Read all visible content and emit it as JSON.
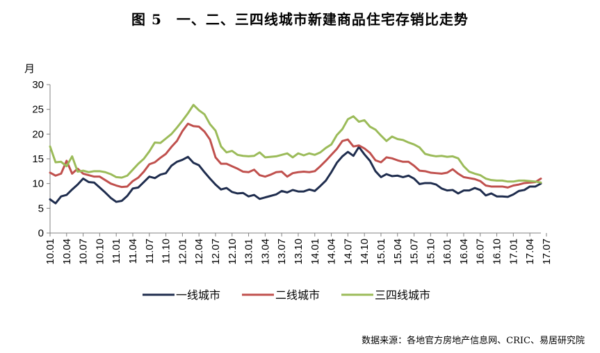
{
  "chart_data": {
    "type": "line",
    "title": "图 5　一、二、三四线城市新建商品住宅存销比走势",
    "ylabel": "月",
    "ylim": [
      0,
      30
    ],
    "yticks": [
      0,
      5,
      10,
      15,
      20,
      25,
      30
    ],
    "x_tick_labels": [
      "10.01",
      "10.04",
      "10.07",
      "10.10",
      "11.01",
      "11.04",
      "11.07",
      "11.10",
      "12.01",
      "12.04",
      "12.07",
      "12.10",
      "13.01",
      "13.04",
      "13.07",
      "13.10",
      "14.01",
      "14.04",
      "14.07",
      "14.10",
      "15.01",
      "15.04",
      "15.07",
      "15.10",
      "16.01",
      "16.04",
      "16.07",
      "16.10",
      "17.01",
      "17.04",
      "17.07"
    ],
    "grid": false,
    "legend": "bottom",
    "series": [
      {
        "name": "一线城市",
        "color": "#1f2d4e",
        "values": [
          6.8,
          6.0,
          7.4,
          7.7,
          8.8,
          9.8,
          11.0,
          10.3,
          10.2,
          9.2,
          8.2,
          7.1,
          6.3,
          6.5,
          7.5,
          9.0,
          9.2,
          10.3,
          11.4,
          11.1,
          11.8,
          12.1,
          13.6,
          14.4,
          14.8,
          15.4,
          14.2,
          13.7,
          12.3,
          11.0,
          9.8,
          8.8,
          9.1,
          8.3,
          8.0,
          8.1,
          7.4,
          7.7,
          6.9,
          7.2,
          7.5,
          7.8,
          8.5,
          8.2,
          8.7,
          8.4,
          8.4,
          8.8,
          8.5,
          9.5,
          10.6,
          12.3,
          14.2,
          15.5,
          16.4,
          15.6,
          17.4,
          15.9,
          14.6,
          12.5,
          11.3,
          11.9,
          11.5,
          11.6,
          11.3,
          11.6,
          11.0,
          9.9,
          10.1,
          10.1,
          9.8,
          9.0,
          8.6,
          8.7,
          8.0,
          8.6,
          8.6,
          9.1,
          8.7,
          7.6,
          8.0,
          7.4,
          7.4,
          7.3,
          7.8,
          8.5,
          8.7,
          9.4,
          9.4,
          10.0
        ]
      },
      {
        "name": "二线城市",
        "color": "#c0504d",
        "values": [
          12.2,
          11.6,
          12.0,
          14.6,
          12.0,
          13.0,
          12.0,
          11.7,
          11.4,
          11.4,
          10.7,
          10.0,
          9.6,
          9.3,
          9.4,
          10.5,
          11.2,
          12.4,
          13.9,
          14.3,
          15.2,
          16.0,
          17.4,
          18.6,
          20.6,
          22.1,
          21.6,
          21.5,
          20.5,
          18.9,
          15.3,
          14.0,
          14.0,
          13.5,
          13.0,
          12.4,
          12.3,
          12.8,
          11.7,
          11.4,
          11.8,
          12.3,
          12.4,
          11.4,
          12.1,
          12.3,
          12.4,
          12.3,
          12.5,
          13.5,
          14.6,
          15.8,
          17.0,
          18.6,
          18.9,
          17.5,
          17.7,
          17.1,
          16.2,
          14.7,
          14.3,
          15.3,
          15.1,
          14.7,
          14.4,
          14.4,
          13.6,
          12.6,
          12.5,
          12.2,
          12.1,
          12.0,
          12.2,
          12.9,
          12.0,
          11.3,
          11.1,
          10.9,
          10.5,
          9.6,
          9.4,
          9.4,
          9.4,
          9.2,
          9.6,
          9.8,
          10.1,
          10.2,
          10.3,
          11.0
        ]
      },
      {
        "name": "三四线城市",
        "color": "#9bbb59",
        "values": [
          17.5,
          14.3,
          14.4,
          13.5,
          15.5,
          12.4,
          12.6,
          12.3,
          12.5,
          12.5,
          12.3,
          11.9,
          11.3,
          11.2,
          11.6,
          12.8,
          14.0,
          15.0,
          16.5,
          18.3,
          18.2,
          19.1,
          20.0,
          21.3,
          22.7,
          24.2,
          25.9,
          24.8,
          24.0,
          22.0,
          20.7,
          17.5,
          16.3,
          16.6,
          15.8,
          15.6,
          15.5,
          15.6,
          16.3,
          15.3,
          15.4,
          15.5,
          15.8,
          16.1,
          15.3,
          16.1,
          15.7,
          16.1,
          15.8,
          16.3,
          17.2,
          17.9,
          19.8,
          21.0,
          23.0,
          23.6,
          22.5,
          22.8,
          21.5,
          20.9,
          19.7,
          18.6,
          19.5,
          19.0,
          18.8,
          18.3,
          17.9,
          17.3,
          16.0,
          15.7,
          15.5,
          15.6,
          15.4,
          15.5,
          15.1,
          13.5,
          12.4,
          12.0,
          11.7,
          11.0,
          10.7,
          10.6,
          10.6,
          10.4,
          10.4,
          10.6,
          10.6,
          10.5,
          10.4,
          10.2
        ]
      }
    ]
  },
  "source_note": "数据来源：各地官方房地产信息网、CRIC、易居研究院"
}
